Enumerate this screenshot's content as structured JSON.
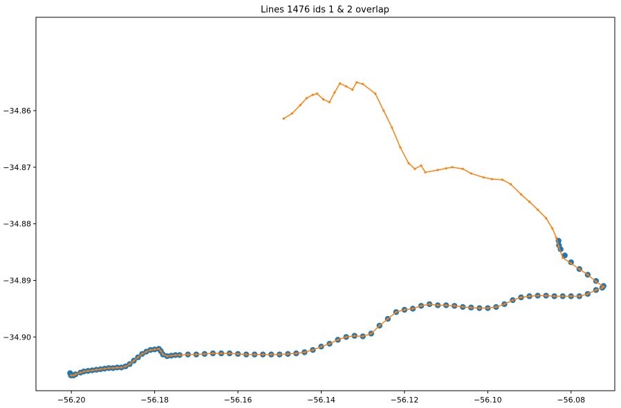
{
  "chart_data": {
    "type": "scatter",
    "title": "Lines 1476 ids 1 & 2 overlap",
    "xlabel": "",
    "ylabel": "",
    "xlim": [
      -56.2085,
      -56.0695
    ],
    "ylim": [
      -34.9095,
      -34.8435
    ],
    "x_ticks": [
      -56.2,
      -56.18,
      -56.16,
      -56.14,
      -56.12,
      -56.1,
      -56.08
    ],
    "x_tick_labels": [
      "−56.20",
      "−56.18",
      "−56.16",
      "−56.14",
      "−56.12",
      "−56.10",
      "−56.08"
    ],
    "y_ticks": [
      -34.86,
      -34.87,
      -34.88,
      -34.89,
      -34.9
    ],
    "y_tick_labels": [
      "−34.86",
      "−34.87",
      "−34.88",
      "−34.89",
      "−34.90"
    ],
    "grid": false,
    "colors": {
      "series1": "#1f77b4",
      "series2": "#ff7f0e"
    },
    "series": [
      {
        "style": "large-markers",
        "color": "#1f77b4",
        "points": [
          [
            -56.2003,
            -34.9064
          ],
          [
            -56.2001,
            -34.9068
          ],
          [
            -56.1995,
            -34.9068
          ],
          [
            -56.199,
            -34.9066
          ],
          [
            -56.1978,
            -34.9063
          ],
          [
            -56.197,
            -34.9061
          ],
          [
            -56.196,
            -34.906
          ],
          [
            -56.195,
            -34.9059
          ],
          [
            -56.194,
            -34.9058
          ],
          [
            -56.193,
            -34.9057
          ],
          [
            -56.192,
            -34.9056
          ],
          [
            -56.191,
            -34.9055
          ],
          [
            -56.19,
            -34.9055
          ],
          [
            -56.189,
            -34.9054
          ],
          [
            -56.188,
            -34.9054
          ],
          [
            -56.187,
            -34.9052
          ],
          [
            -56.186,
            -34.9048
          ],
          [
            -56.185,
            -34.9042
          ],
          [
            -56.184,
            -34.9036
          ],
          [
            -56.183,
            -34.903
          ],
          [
            -56.182,
            -34.9026
          ],
          [
            -56.181,
            -34.9023
          ],
          [
            -56.18,
            -34.9022
          ],
          [
            -56.179,
            -34.9021
          ],
          [
            -56.1785,
            -34.9025
          ],
          [
            -56.178,
            -34.9031
          ],
          [
            -56.177,
            -34.9034
          ],
          [
            -56.176,
            -34.9033
          ],
          [
            -56.175,
            -34.9032
          ],
          [
            -56.174,
            -34.9032
          ],
          [
            -56.172,
            -34.9031
          ],
          [
            -56.17,
            -34.9031
          ],
          [
            -56.168,
            -34.903
          ],
          [
            -56.166,
            -34.9029
          ],
          [
            -56.164,
            -34.9029
          ],
          [
            -56.162,
            -34.9029
          ],
          [
            -56.16,
            -34.903
          ],
          [
            -56.158,
            -34.9031
          ],
          [
            -56.156,
            -34.9031
          ],
          [
            -56.154,
            -34.9031
          ],
          [
            -56.152,
            -34.9031
          ],
          [
            -56.15,
            -34.9031
          ],
          [
            -56.148,
            -34.903
          ],
          [
            -56.146,
            -34.9029
          ],
          [
            -56.144,
            -34.9027
          ],
          [
            -56.142,
            -34.9023
          ],
          [
            -56.14,
            -34.9017
          ],
          [
            -56.138,
            -34.9012
          ],
          [
            -56.136,
            -34.9005
          ],
          [
            -56.134,
            -34.9
          ],
          [
            -56.132,
            -34.8998
          ],
          [
            -56.13,
            -34.8999
          ],
          [
            -56.128,
            -34.8994
          ],
          [
            -56.126,
            -34.898
          ],
          [
            -56.124,
            -34.8968
          ],
          [
            -56.122,
            -34.8956
          ],
          [
            -56.12,
            -34.8952
          ],
          [
            -56.118,
            -34.895
          ],
          [
            -56.116,
            -34.8945
          ],
          [
            -56.114,
            -34.8942
          ],
          [
            -56.112,
            -34.8944
          ],
          [
            -56.11,
            -34.8944
          ],
          [
            -56.108,
            -34.8945
          ],
          [
            -56.106,
            -34.8947
          ],
          [
            -56.104,
            -34.8948
          ],
          [
            -56.102,
            -34.8949
          ],
          [
            -56.1,
            -34.8949
          ],
          [
            -56.098,
            -34.8947
          ],
          [
            -56.096,
            -34.8942
          ],
          [
            -56.094,
            -34.8935
          ],
          [
            -56.092,
            -34.893
          ],
          [
            -56.09,
            -34.8928
          ],
          [
            -56.088,
            -34.8927
          ],
          [
            -56.086,
            -34.8927
          ],
          [
            -56.084,
            -34.8928
          ],
          [
            -56.082,
            -34.8928
          ],
          [
            -56.08,
            -34.8928
          ],
          [
            -56.078,
            -34.8928
          ],
          [
            -56.076,
            -34.8924
          ],
          [
            -56.074,
            -34.8917
          ],
          [
            -56.0725,
            -34.8913
          ],
          [
            -56.0722,
            -34.891
          ],
          [
            -56.074,
            -34.8901
          ],
          [
            -56.076,
            -34.889
          ],
          [
            -56.078,
            -34.888
          ],
          [
            -56.08,
            -34.8868
          ],
          [
            -56.0815,
            -34.8856
          ],
          [
            -56.0825,
            -34.8845
          ],
          [
            -56.0829,
            -34.8838
          ],
          [
            -56.083,
            -34.883
          ]
        ]
      },
      {
        "style": "line-with-small-markers",
        "color": "#ff7f0e",
        "points": [
          [
            -56.149,
            -34.8614
          ],
          [
            -56.147,
            -34.8605
          ],
          [
            -56.145,
            -34.859
          ],
          [
            -56.1435,
            -34.8578
          ],
          [
            -56.142,
            -34.8572
          ],
          [
            -56.141,
            -34.857
          ],
          [
            -56.1395,
            -34.858
          ],
          [
            -56.138,
            -34.8585
          ],
          [
            -56.1368,
            -34.8568
          ],
          [
            -56.1355,
            -34.8552
          ],
          [
            -56.134,
            -34.8557
          ],
          [
            -56.1325,
            -34.8563
          ],
          [
            -56.1315,
            -34.855
          ],
          [
            -56.13,
            -34.8553
          ],
          [
            -56.127,
            -34.857
          ],
          [
            -56.125,
            -34.86
          ],
          [
            -56.123,
            -34.863
          ],
          [
            -56.121,
            -34.8665
          ],
          [
            -56.119,
            -34.8693
          ],
          [
            -56.1175,
            -34.8703
          ],
          [
            -56.116,
            -34.8697
          ],
          [
            -56.115,
            -34.8709
          ],
          [
            -56.112,
            -34.8705
          ],
          [
            -56.11,
            -34.8702
          ],
          [
            -56.1085,
            -34.87
          ],
          [
            -56.106,
            -34.8703
          ],
          [
            -56.104,
            -34.8711
          ],
          [
            -56.101,
            -34.8718
          ],
          [
            -56.099,
            -34.8721
          ],
          [
            -56.0965,
            -34.8722
          ],
          [
            -56.0945,
            -34.873
          ],
          [
            -56.092,
            -34.8748
          ],
          [
            -56.09,
            -34.8761
          ],
          [
            -56.088,
            -34.8775
          ],
          [
            -56.086,
            -34.879
          ],
          [
            -56.0845,
            -34.8808
          ],
          [
            -56.0835,
            -34.8825
          ],
          [
            -56.083,
            -34.884
          ],
          [
            -56.082,
            -34.886
          ],
          [
            -56.08,
            -34.887
          ],
          [
            -56.078,
            -34.888
          ],
          [
            -56.076,
            -34.889
          ],
          [
            -56.074,
            -34.8902
          ],
          [
            -56.0722,
            -34.8911
          ],
          [
            -56.0725,
            -34.8913
          ],
          [
            -56.074,
            -34.8917
          ],
          [
            -56.076,
            -34.8924
          ],
          [
            -56.078,
            -34.8928
          ],
          [
            -56.08,
            -34.8928
          ],
          [
            -56.082,
            -34.8928
          ],
          [
            -56.084,
            -34.8928
          ],
          [
            -56.086,
            -34.8927
          ],
          [
            -56.088,
            -34.8927
          ],
          [
            -56.09,
            -34.8928
          ],
          [
            -56.092,
            -34.893
          ],
          [
            -56.094,
            -34.8935
          ],
          [
            -56.096,
            -34.8942
          ],
          [
            -56.098,
            -34.8947
          ],
          [
            -56.1,
            -34.8949
          ],
          [
            -56.102,
            -34.8949
          ],
          [
            -56.104,
            -34.8948
          ],
          [
            -56.106,
            -34.8947
          ],
          [
            -56.108,
            -34.8945
          ],
          [
            -56.11,
            -34.8944
          ],
          [
            -56.112,
            -34.8944
          ],
          [
            -56.114,
            -34.8942
          ],
          [
            -56.116,
            -34.8945
          ],
          [
            -56.118,
            -34.895
          ],
          [
            -56.12,
            -34.8952
          ],
          [
            -56.122,
            -34.8956
          ],
          [
            -56.124,
            -34.8968
          ],
          [
            -56.126,
            -34.898
          ],
          [
            -56.128,
            -34.8994
          ],
          [
            -56.13,
            -34.8999
          ],
          [
            -56.132,
            -34.8998
          ],
          [
            -56.134,
            -34.9
          ],
          [
            -56.136,
            -34.9005
          ],
          [
            -56.138,
            -34.9012
          ],
          [
            -56.14,
            -34.9017
          ],
          [
            -56.142,
            -34.9023
          ],
          [
            -56.144,
            -34.9027
          ],
          [
            -56.146,
            -34.9029
          ],
          [
            -56.148,
            -34.903
          ],
          [
            -56.15,
            -34.9031
          ],
          [
            -56.152,
            -34.9031
          ],
          [
            -56.154,
            -34.9031
          ],
          [
            -56.156,
            -34.9031
          ],
          [
            -56.158,
            -34.9031
          ],
          [
            -56.16,
            -34.903
          ],
          [
            -56.162,
            -34.9029
          ],
          [
            -56.164,
            -34.9029
          ],
          [
            -56.166,
            -34.9029
          ],
          [
            -56.168,
            -34.903
          ],
          [
            -56.17,
            -34.9031
          ],
          [
            -56.172,
            -34.9031
          ],
          [
            -56.174,
            -34.9032
          ],
          [
            -56.175,
            -34.9032
          ],
          [
            -56.176,
            -34.9033
          ],
          [
            -56.177,
            -34.9034
          ],
          [
            -56.178,
            -34.9031
          ],
          [
            -56.1785,
            -34.9025
          ],
          [
            -56.179,
            -34.9021
          ],
          [
            -56.18,
            -34.9022
          ],
          [
            -56.181,
            -34.9023
          ],
          [
            -56.182,
            -34.9026
          ],
          [
            -56.183,
            -34.903
          ],
          [
            -56.184,
            -34.9036
          ],
          [
            -56.185,
            -34.9042
          ],
          [
            -56.186,
            -34.9048
          ],
          [
            -56.187,
            -34.9052
          ],
          [
            -56.188,
            -34.9054
          ],
          [
            -56.189,
            -34.9054
          ],
          [
            -56.19,
            -34.9055
          ],
          [
            -56.191,
            -34.9055
          ],
          [
            -56.192,
            -34.9056
          ],
          [
            -56.193,
            -34.9057
          ],
          [
            -56.194,
            -34.9058
          ],
          [
            -56.195,
            -34.9059
          ],
          [
            -56.196,
            -34.906
          ],
          [
            -56.197,
            -34.9061
          ],
          [
            -56.1978,
            -34.9063
          ],
          [
            -56.199,
            -34.9066
          ],
          [
            -56.1995,
            -34.9068
          ],
          [
            -56.2001,
            -34.9068
          ]
        ]
      }
    ]
  }
}
